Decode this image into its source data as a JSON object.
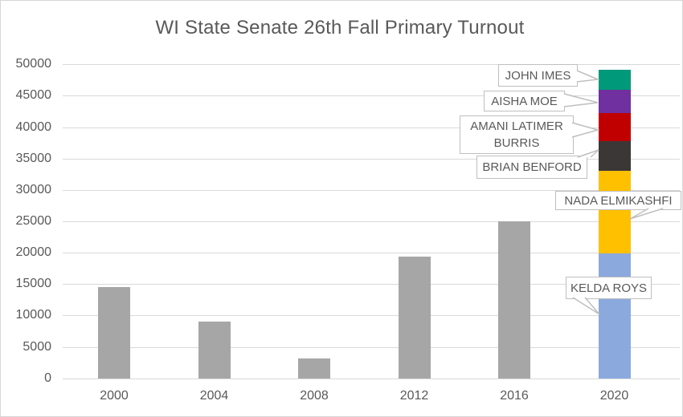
{
  "chart_data": {
    "type": "bar",
    "title": "WI State Senate 26th Fall Primary Turnout",
    "xlabel": "",
    "ylabel": "",
    "categories": [
      "2000",
      "2004",
      "2008",
      "2012",
      "2016",
      "2020"
    ],
    "ylim": [
      0,
      50000
    ],
    "ytick_step": 5000,
    "yticks": [
      "0",
      "5000",
      "10000",
      "15000",
      "20000",
      "25000",
      "30000",
      "35000",
      "40000",
      "45000",
      "50000"
    ],
    "grid": true,
    "legend": "none",
    "bar_color_default": "#a6a6a6",
    "bars": [
      {
        "category": "2000",
        "total": 14500,
        "segments": [
          {
            "label": "",
            "value": 14500,
            "color": "#a6a6a6"
          }
        ]
      },
      {
        "category": "2004",
        "total": 9000,
        "segments": [
          {
            "label": "",
            "value": 9000,
            "color": "#a6a6a6"
          }
        ]
      },
      {
        "category": "2008",
        "total": 3200,
        "segments": [
          {
            "label": "",
            "value": 3200,
            "color": "#a6a6a6"
          }
        ]
      },
      {
        "category": "2012",
        "total": 19400,
        "segments": [
          {
            "label": "",
            "value": 19400,
            "color": "#a6a6a6"
          }
        ]
      },
      {
        "category": "2016",
        "total": 25000,
        "segments": [
          {
            "label": "",
            "value": 25000,
            "color": "#a6a6a6"
          }
        ]
      },
      {
        "category": "2020",
        "total": 49200,
        "segments": [
          {
            "label": "KELDA ROYS",
            "value": 19900,
            "color": "#8ca9de"
          },
          {
            "label": "NADA ELMIKASHFI",
            "value": 13100,
            "color": "#ffc000"
          },
          {
            "label": "BRIAN BENFORD",
            "value": 4800,
            "color": "#3b3737"
          },
          {
            "label": "AMANI LATIMER BURRIS",
            "value": 4400,
            "color": "#c00000"
          },
          {
            "label": "AISHA MOE",
            "value": 3700,
            "color": "#7030a0"
          },
          {
            "label": "JOHN IMES",
            "value": 3300,
            "color": "#00997a"
          }
        ]
      }
    ],
    "annotations": [
      {
        "id": "john",
        "lines": [
          "JOHN IMES"
        ],
        "points_to": "2020 segment JOHN IMES"
      },
      {
        "id": "aisha",
        "lines": [
          "AISHA MOE"
        ],
        "points_to": "2020 segment AISHA MOE"
      },
      {
        "id": "amani",
        "lines": [
          "AMANI LATIMER",
          "BURRIS"
        ],
        "points_to": "2020 segment AMANI LATIMER BURRIS"
      },
      {
        "id": "brian",
        "lines": [
          "BRIAN BENFORD"
        ],
        "points_to": "2020 segment BRIAN BENFORD"
      },
      {
        "id": "nada",
        "lines": [
          "NADA ELMIKASHFI"
        ],
        "points_to": "2020 segment NADA ELMIKASHFI"
      },
      {
        "id": "kelda",
        "lines": [
          "KELDA ROYS"
        ],
        "points_to": "2020 segment KELDA ROYS"
      }
    ]
  },
  "style_colors": {
    "text": "#595959",
    "gridline": "#d9d9d9",
    "callout_border": "#bfbfbf",
    "canvas_border": "#d6d6d6"
  }
}
